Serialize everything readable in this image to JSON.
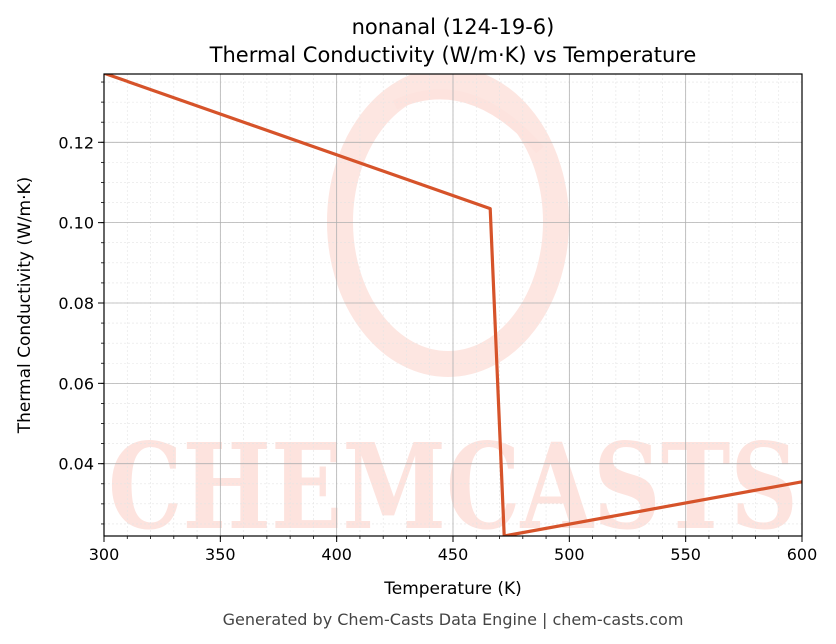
{
  "chart_data": {
    "type": "line",
    "title": "nonanal (124-19-6)",
    "subtitle": "Thermal Conductivity (W/m·K) vs Temperature",
    "xlabel": "Temperature (K)",
    "ylabel": "Thermal Conductivity (W/m·K)",
    "xlim": [
      300,
      600
    ],
    "ylim": [
      0.022,
      0.137
    ],
    "xticks": [
      300,
      350,
      400,
      450,
      500,
      550,
      600
    ],
    "xtick_labels": [
      "300",
      "350",
      "400",
      "450",
      "500",
      "550",
      "600"
    ],
    "yticks": [
      0.04,
      0.06,
      0.08,
      0.1,
      0.12
    ],
    "ytick_labels": [
      "0.04",
      "0.06",
      "0.08",
      "0.10",
      "0.12"
    ],
    "grid": true,
    "series": [
      {
        "color": "#d6532a",
        "x": [
          300,
          466,
          472,
          600
        ],
        "y": [
          0.1372,
          0.1035,
          0.022,
          0.0355
        ]
      }
    ]
  },
  "watermark": "CHEMCASTS",
  "footer": "Generated by Chem-Casts Data Engine | chem-casts.com",
  "colors": {
    "line": "#d6532a",
    "watermark": "#fde3de",
    "grid_major": "#b0b0b0",
    "grid_minor": "#e4e4e4"
  }
}
